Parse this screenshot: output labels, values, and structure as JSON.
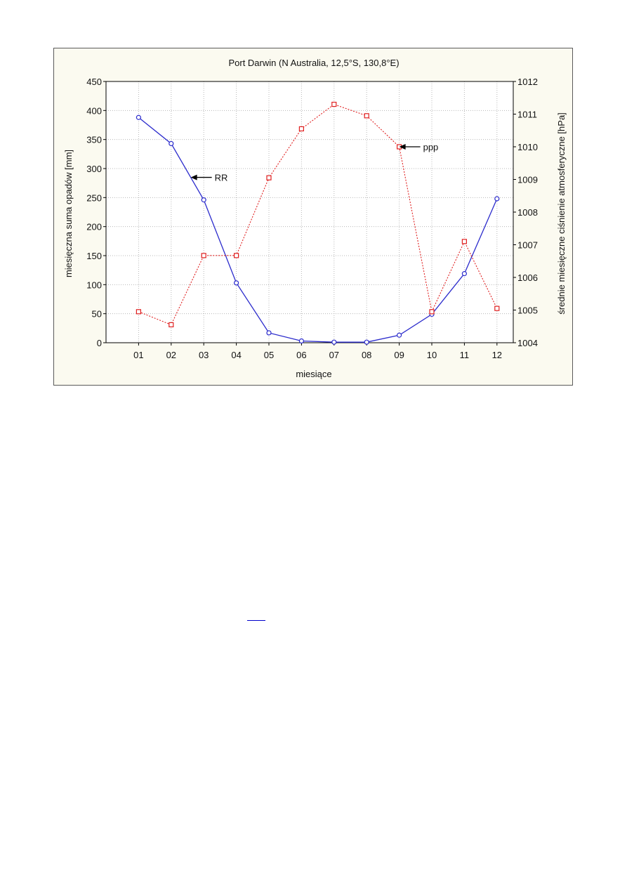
{
  "chart_data": {
    "type": "line",
    "title": "Port Darwin (N Australia, 12,5°S, 130,8°E)",
    "xlabel": "miesiące",
    "ylabel": "miesięczna suma opadów [mm]",
    "y2label": "średnie miesięczne ciśnienie atmosferyczne [hPa]",
    "categories": [
      "01",
      "02",
      "03",
      "04",
      "05",
      "06",
      "07",
      "08",
      "09",
      "10",
      "11",
      "12"
    ],
    "ylim": [
      0,
      450
    ],
    "yticks": [
      0,
      50,
      100,
      150,
      200,
      250,
      300,
      350,
      400,
      450
    ],
    "y2lim": [
      1004,
      1012
    ],
    "y2ticks": [
      1004,
      1005,
      1006,
      1007,
      1008,
      1009,
      1010,
      1011,
      1012
    ],
    "grid": true,
    "series": [
      {
        "name": "RR",
        "axis": "left",
        "color": "#2b2bcc",
        "marker": "circle",
        "line": "solid",
        "values": [
          388,
          343,
          246,
          103,
          17,
          3,
          1,
          1,
          13,
          49,
          119,
          248
        ]
      },
      {
        "name": "ppp",
        "axis": "right",
        "color": "#e02020",
        "marker": "square",
        "line": "dotted",
        "values": [
          1004.95,
          1004.55,
          1006.67,
          1006.67,
          1009.05,
          1010.55,
          1011.3,
          1010.95,
          1010.0,
          1004.95,
          1007.1,
          1005.05
        ]
      }
    ],
    "annotations": [
      {
        "text": "RR",
        "series": "RR",
        "x": 2.6
      },
      {
        "text": "ppp",
        "series": "ppp",
        "x": 9.0
      }
    ]
  }
}
